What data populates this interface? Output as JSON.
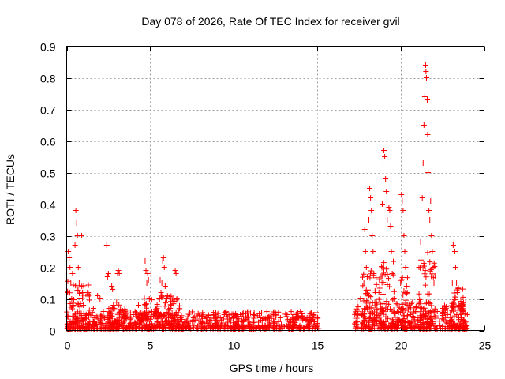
{
  "chart_data": {
    "type": "scatter",
    "title": "Day 078 of 2026, Rate Of TEC Index for receiver gvil",
    "xlabel": "GPS time / hours",
    "ylabel": "ROTI / TECUs",
    "xlim": [
      0,
      25
    ],
    "ylim": [
      0,
      0.9
    ],
    "xticks": [
      0,
      5,
      10,
      15,
      20,
      25
    ],
    "yticks": [
      0,
      0.1,
      0.2,
      0.3,
      0.4,
      0.5,
      0.6,
      0.7,
      0.8,
      0.9
    ],
    "xtick_labels": [
      "0",
      "5",
      "10",
      "15",
      "20",
      "25"
    ],
    "ytick_labels": [
      "0",
      "0.1",
      "0.2",
      "0.3",
      "0.4",
      "0.5",
      "0.6",
      "0.7",
      "0.8",
      "0.9"
    ],
    "grid": true,
    "marker": "+",
    "color": "#ff0000",
    "series": [
      {
        "name": "ROTI",
        "points": [
          [
            0.05,
            0.12
          ],
          [
            0.1,
            0.25
          ],
          [
            0.15,
            0.23
          ],
          [
            0.2,
            0.2
          ],
          [
            0.25,
            0.15
          ],
          [
            0.3,
            0.1
          ],
          [
            0.35,
            0.18
          ],
          [
            0.4,
            0.08
          ],
          [
            0.5,
            0.27
          ],
          [
            0.55,
            0.38
          ],
          [
            0.6,
            0.34
          ],
          [
            0.65,
            0.3
          ],
          [
            0.7,
            0.2
          ],
          [
            0.75,
            0.15
          ],
          [
            0.8,
            0.1
          ],
          [
            0.9,
            0.3
          ],
          [
            0.95,
            0.12
          ],
          [
            1.0,
            0.08
          ],
          [
            1.3,
            0.05
          ],
          [
            1.6,
            0.07
          ],
          [
            1.85,
            0.11
          ],
          [
            2.0,
            0.1
          ],
          [
            2.2,
            0.06
          ],
          [
            2.4,
            0.27
          ],
          [
            2.45,
            0.17
          ],
          [
            2.5,
            0.18
          ],
          [
            2.7,
            0.14
          ],
          [
            2.75,
            0.13
          ],
          [
            2.8,
            0.08
          ],
          [
            3.05,
            0.18
          ],
          [
            3.1,
            0.19
          ],
          [
            3.15,
            0.18
          ],
          [
            3.3,
            0.05
          ],
          [
            3.6,
            0.04
          ],
          [
            4.0,
            0.05
          ],
          [
            4.3,
            0.08
          ],
          [
            4.7,
            0.22
          ],
          [
            4.75,
            0.19
          ],
          [
            4.8,
            0.15
          ],
          [
            4.85,
            0.18
          ],
          [
            4.9,
            0.16
          ],
          [
            4.95,
            0.1
          ],
          [
            5.1,
            0.06
          ],
          [
            5.3,
            0.06
          ],
          [
            5.6,
            0.16
          ],
          [
            5.65,
            0.12
          ],
          [
            5.7,
            0.15
          ],
          [
            5.75,
            0.22
          ],
          [
            5.8,
            0.23
          ],
          [
            5.85,
            0.2
          ],
          [
            5.9,
            0.14
          ],
          [
            6.0,
            0.1
          ],
          [
            6.2,
            0.07
          ],
          [
            6.5,
            0.19
          ],
          [
            6.55,
            0.18
          ],
          [
            6.6,
            0.1
          ],
          [
            6.8,
            0.04
          ],
          [
            7.2,
            0.03
          ],
          [
            7.6,
            0.04
          ],
          [
            8.0,
            0.03
          ],
          [
            8.4,
            0.04
          ],
          [
            8.8,
            0.05
          ],
          [
            9.2,
            0.04
          ],
          [
            9.6,
            0.05
          ],
          [
            10.0,
            0.04
          ],
          [
            10.4,
            0.05
          ],
          [
            10.8,
            0.04
          ],
          [
            11.2,
            0.05
          ],
          [
            11.6,
            0.04
          ],
          [
            12.0,
            0.04
          ],
          [
            12.4,
            0.05
          ],
          [
            12.8,
            0.04
          ],
          [
            13.2,
            0.05
          ],
          [
            13.6,
            0.05
          ],
          [
            14.0,
            0.06
          ],
          [
            14.4,
            0.04
          ],
          [
            14.8,
            0.05
          ],
          [
            17.4,
            0.09
          ],
          [
            17.6,
            0.1
          ],
          [
            17.8,
            0.15
          ],
          [
            17.85,
            0.32
          ],
          [
            17.9,
            0.25
          ],
          [
            17.95,
            0.2
          ],
          [
            18.0,
            0.17
          ],
          [
            18.1,
            0.35
          ],
          [
            18.15,
            0.45
          ],
          [
            18.2,
            0.42
          ],
          [
            18.25,
            0.38
          ],
          [
            18.3,
            0.3
          ],
          [
            18.35,
            0.25
          ],
          [
            18.4,
            0.18
          ],
          [
            18.5,
            0.12
          ],
          [
            18.7,
            0.12
          ],
          [
            18.9,
            0.4
          ],
          [
            18.95,
            0.53
          ],
          [
            19.0,
            0.57
          ],
          [
            19.05,
            0.55
          ],
          [
            19.1,
            0.48
          ],
          [
            19.15,
            0.44
          ],
          [
            19.2,
            0.35
          ],
          [
            19.3,
            0.39
          ],
          [
            19.35,
            0.38
          ],
          [
            19.4,
            0.33
          ],
          [
            19.45,
            0.25
          ],
          [
            19.5,
            0.18
          ],
          [
            19.6,
            0.1
          ],
          [
            19.8,
            0.06
          ],
          [
            20.0,
            0.15
          ],
          [
            20.05,
            0.43
          ],
          [
            20.1,
            0.41
          ],
          [
            20.15,
            0.38
          ],
          [
            20.2,
            0.3
          ],
          [
            20.25,
            0.25
          ],
          [
            20.3,
            0.2
          ],
          [
            20.4,
            0.12
          ],
          [
            20.6,
            0.05
          ],
          [
            20.9,
            0.06
          ],
          [
            21.1,
            0.2
          ],
          [
            21.2,
            0.28
          ],
          [
            21.3,
            0.42
          ],
          [
            21.35,
            0.53
          ],
          [
            21.4,
            0.65
          ],
          [
            21.45,
            0.74
          ],
          [
            21.5,
            0.84
          ],
          [
            21.52,
            0.82
          ],
          [
            21.55,
            0.8
          ],
          [
            21.6,
            0.73
          ],
          [
            21.62,
            0.62
          ],
          [
            21.65,
            0.5
          ],
          [
            21.7,
            0.38
          ],
          [
            21.75,
            0.35
          ],
          [
            21.8,
            0.41
          ],
          [
            21.85,
            0.3
          ],
          [
            21.9,
            0.25
          ],
          [
            21.95,
            0.2
          ],
          [
            22.0,
            0.15
          ],
          [
            22.2,
            0.06
          ],
          [
            22.5,
            0.07
          ],
          [
            22.8,
            0.05
          ],
          [
            23.1,
            0.15
          ],
          [
            23.15,
            0.27
          ],
          [
            23.2,
            0.28
          ],
          [
            23.25,
            0.25
          ],
          [
            23.3,
            0.2
          ],
          [
            23.35,
            0.15
          ],
          [
            23.4,
            0.12
          ],
          [
            23.5,
            0.08
          ],
          [
            23.7,
            0.06
          ],
          [
            23.9,
            0.09
          ],
          [
            24.0,
            0.05
          ]
        ],
        "bands": [
          {
            "x": [
              0.0,
              15.1
            ],
            "y": [
              0.005,
              0.06
            ]
          },
          {
            "x": [
              0.0,
              1.4
            ],
            "y": [
              0.005,
              0.16
            ]
          },
          {
            "x": [
              2.5,
              3.6
            ],
            "y": [
              0.005,
              0.09
            ]
          },
          {
            "x": [
              4.5,
              6.8
            ],
            "y": [
              0.005,
              0.11
            ]
          },
          {
            "x": [
              17.2,
              24.0
            ],
            "y": [
              0.005,
              0.09
            ]
          },
          {
            "x": [
              17.7,
              18.6
            ],
            "y": [
              0.005,
              0.2
            ]
          },
          {
            "x": [
              18.7,
              19.7
            ],
            "y": [
              0.005,
              0.22
            ]
          },
          {
            "x": [
              20.0,
              20.6
            ],
            "y": [
              0.005,
              0.18
            ]
          },
          {
            "x": [
              21.1,
              22.1
            ],
            "y": [
              0.005,
              0.25
            ]
          },
          {
            "x": [
              23.0,
              23.8
            ],
            "y": [
              0.005,
              0.14
            ]
          }
        ]
      }
    ]
  }
}
